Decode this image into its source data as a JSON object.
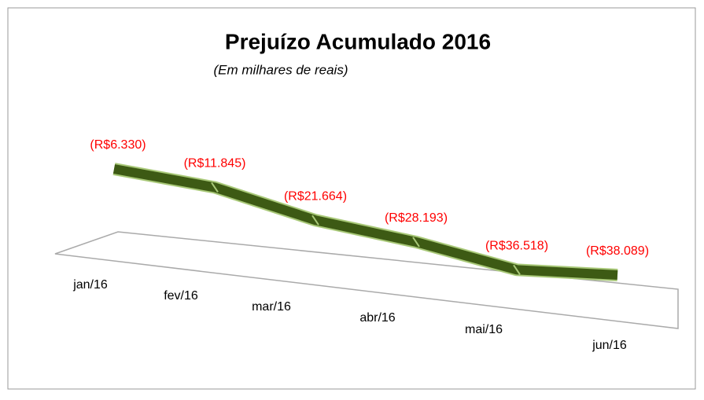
{
  "chart_data": {
    "type": "line3d",
    "title": "Prejuízo Acumulado 2016",
    "subtitle": "(Em milhares de reais)",
    "categories": [
      "jan/16",
      "fev/16",
      "mar/16",
      "abr/16",
      "mai/16",
      "jun/16"
    ],
    "series": [
      {
        "name": "Prejuízo Acumulado",
        "color": "#3d5a14",
        "values": [
          -6330,
          -11845,
          -21664,
          -28193,
          -36518,
          -38089
        ],
        "value_labels": [
          "(R$6.330)",
          "(R$11.845)",
          "(R$21.664)",
          "(R$28.193)",
          "(R$36.518)",
          "(R$38.089)"
        ]
      }
    ],
    "label_color": "#ff0000"
  }
}
